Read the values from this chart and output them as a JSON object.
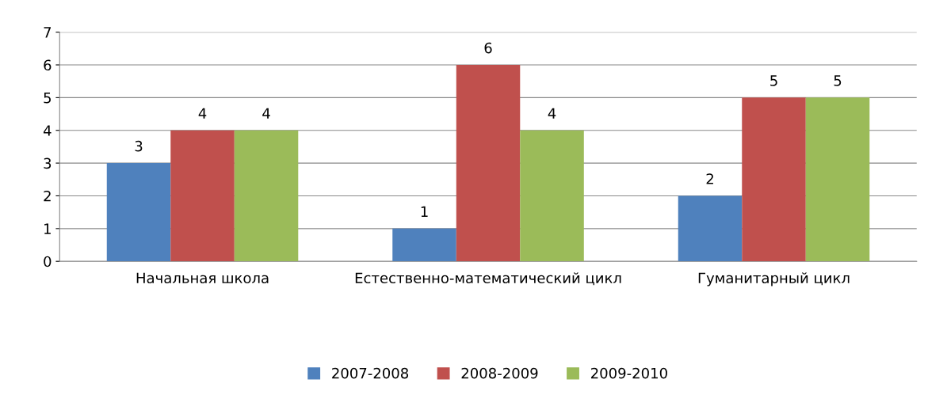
{
  "chart_data": {
    "type": "bar",
    "categories": [
      "Начальная школа",
      "Естественно-математический цикл",
      "Гуманитарный цикл"
    ],
    "series": [
      {
        "name": "2007-2008",
        "color": "#4f81bd",
        "values": [
          3,
          1,
          2
        ]
      },
      {
        "name": "2008-2009",
        "color": "#c0504d",
        "values": [
          4,
          6,
          5
        ]
      },
      {
        "name": "2009-2010",
        "color": "#9bbb59",
        "values": [
          4,
          4,
          5
        ]
      }
    ],
    "ylim": [
      0,
      7
    ],
    "yticks": [
      0,
      1,
      2,
      3,
      4,
      5,
      6,
      7
    ],
    "grid": "y",
    "legend": "bottom",
    "data_labels": true
  }
}
